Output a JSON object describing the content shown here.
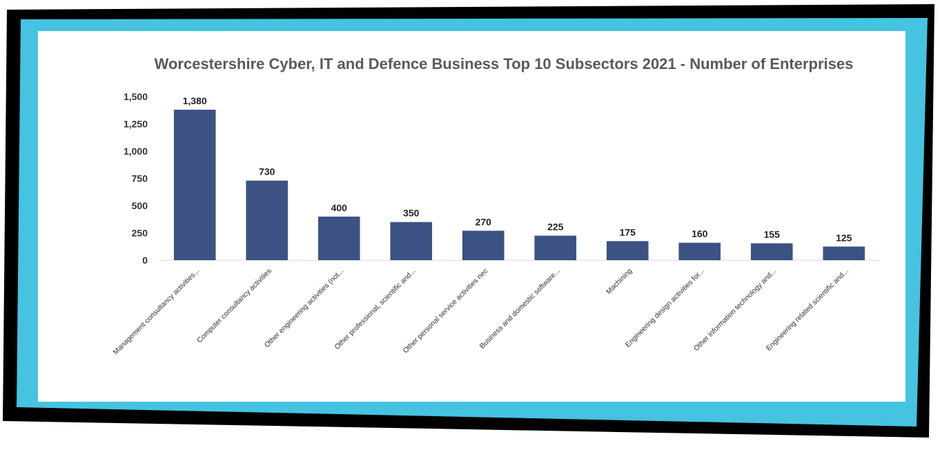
{
  "colors": {
    "frame_outer": "#000000",
    "frame_inner": "#45c3e0",
    "panel": "#ffffff",
    "bar": "#3b5283",
    "title": "#595959",
    "axis": "#d9d9d9"
  },
  "chart_data": {
    "type": "bar",
    "title": "Worcestershire Cyber, IT and Defence Business Top 10 Subsectors 2021 - Number of Enterprises",
    "xlabel": "",
    "ylabel": "",
    "ylim": [
      0,
      1500
    ],
    "yticks": [
      0,
      250,
      500,
      750,
      1000,
      1250,
      1500
    ],
    "ytick_labels": [
      "0",
      "250",
      "500",
      "750",
      "1,000",
      "1,250",
      "1,500"
    ],
    "grid": false,
    "legend": "none",
    "categories": [
      "Management consultancy activities...",
      "Computer consultancy activities",
      "Other engineering activities (not...",
      "Other professional, scientific and...",
      "Other personal service activities nec",
      "Business and domestic software...",
      "Machining",
      "Engineering design activities for...",
      "Other information technology and...",
      "Engineering related scientific and..."
    ],
    "values": [
      1380,
      730,
      400,
      350,
      270,
      225,
      175,
      160,
      155,
      125
    ],
    "data_labels": [
      "1,380",
      "730",
      "400",
      "350",
      "270",
      "225",
      "175",
      "160",
      "155",
      "125"
    ]
  }
}
